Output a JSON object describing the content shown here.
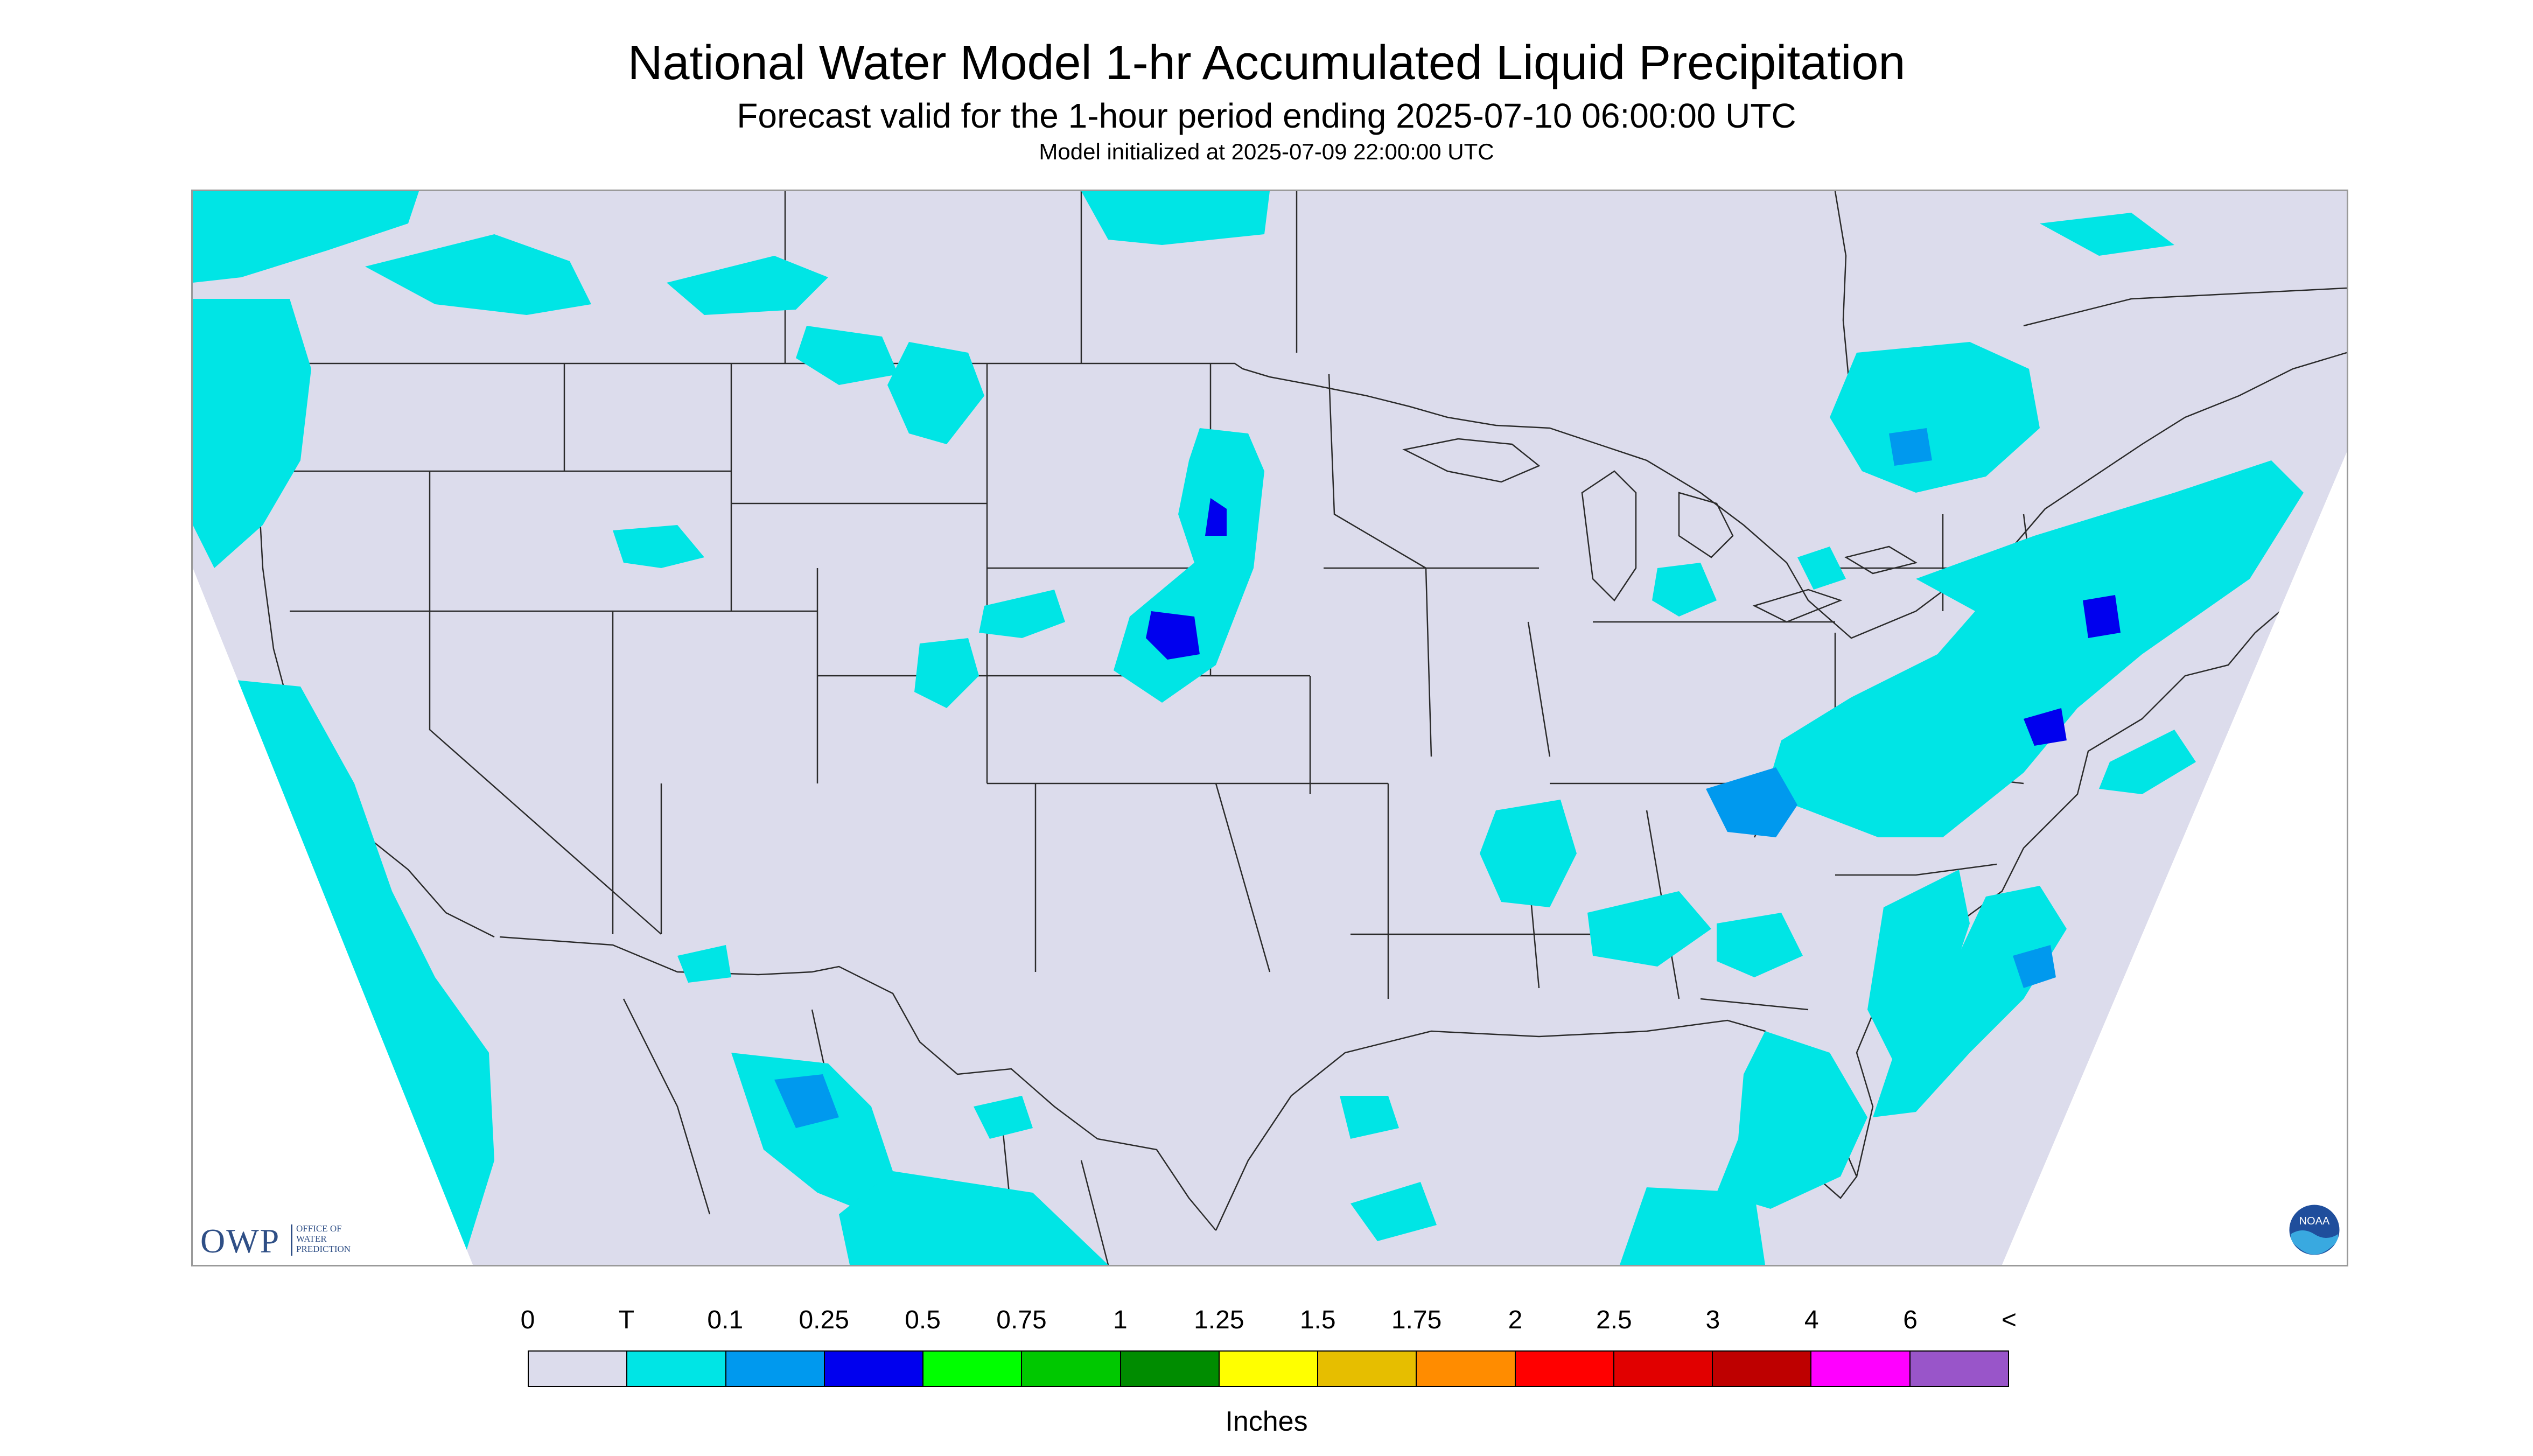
{
  "header": {
    "title": "National Water Model 1-hr Accumulated Liquid Precipitation",
    "subtitle": "Forecast valid for the 1-hour period ending 2025-07-10 06:00:00 UTC",
    "init": "Model initialized at 2025-07-09 22:00:00 UTC"
  },
  "map": {
    "background_color": "#dcdcec",
    "outside_domain_color": "#ffffff",
    "border_color": "#2b2b2b",
    "trace_color": "#00e5e5"
  },
  "logos": {
    "owp_text": "OWP",
    "owp_subtext": "OFFICE OF\nWATER\nPREDICTION",
    "noaa_text": "NOAA"
  },
  "legend": {
    "labels": [
      "0",
      "T",
      "0.1",
      "0.25",
      "0.5",
      "0.75",
      "1",
      "1.25",
      "1.5",
      "1.75",
      "2",
      "2.5",
      "3",
      "4",
      "6",
      "<"
    ],
    "colors": [
      "#dcdcec",
      "#00e5e5",
      "#0099ee",
      "#0000ee",
      "#00ff00",
      "#00c800",
      "#008c00",
      "#ffff00",
      "#e6be00",
      "#ff8c00",
      "#ff0000",
      "#e10000",
      "#be0000",
      "#ff00ff",
      "#9955c9"
    ],
    "units": "Inches"
  }
}
